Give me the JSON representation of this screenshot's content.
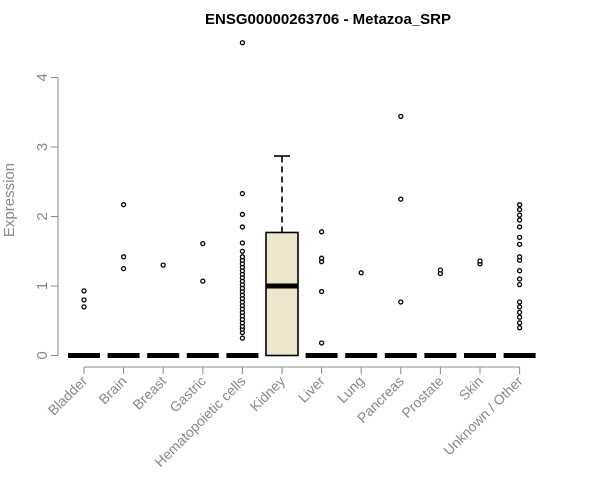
{
  "chart_data": {
    "type": "box",
    "title": "ENSG00000263706 - Metazoa_SRP",
    "ylabel": "Expression",
    "xlabel": "",
    "ylim": [
      0,
      4.6
    ],
    "yticks": [
      0,
      1,
      2,
      3,
      4
    ],
    "grid": false,
    "legend": "none",
    "categories": [
      "Bladder",
      "Brain",
      "Breast",
      "Gastric",
      "Hematopoietic cells",
      "Kidney",
      "Liver",
      "Lung",
      "Pancreas",
      "Prostate",
      "Skin",
      "Unknown / Other"
    ],
    "boxes": [
      {
        "q1": 0,
        "median": 0,
        "q3": 0,
        "whisker_low": 0,
        "whisker_high": 0,
        "outliers": [
          0.7,
          0.8,
          0.93
        ]
      },
      {
        "q1": 0,
        "median": 0,
        "q3": 0,
        "whisker_low": 0,
        "whisker_high": 0,
        "outliers": [
          1.25,
          1.42,
          2.17
        ]
      },
      {
        "q1": 0,
        "median": 0,
        "q3": 0,
        "whisker_low": 0,
        "whisker_high": 0,
        "outliers": [
          1.3
        ]
      },
      {
        "q1": 0,
        "median": 0,
        "q3": 0,
        "whisker_low": 0,
        "whisker_high": 0,
        "outliers": [
          1.07,
          1.61
        ]
      },
      {
        "q1": 0,
        "median": 0,
        "q3": 0,
        "whisker_low": 0,
        "whisker_high": 0,
        "outliers": [
          0.25,
          0.33,
          0.38,
          0.42,
          0.47,
          0.52,
          0.57,
          0.62,
          0.67,
          0.72,
          0.77,
          0.82,
          0.87,
          0.92,
          0.97,
          1.02,
          1.07,
          1.12,
          1.17,
          1.22,
          1.27,
          1.32,
          1.37,
          1.42,
          1.5,
          1.62,
          1.85,
          2.03,
          2.33,
          4.5
        ]
      },
      {
        "q1": 0,
        "median": 1.0,
        "q3": 1.77,
        "whisker_low": 0,
        "whisker_high": 2.87,
        "outliers": []
      },
      {
        "q1": 0,
        "median": 0,
        "q3": 0,
        "whisker_low": 0,
        "whisker_high": 0,
        "outliers": [
          0.18,
          0.92,
          1.35,
          1.4,
          1.78
        ]
      },
      {
        "q1": 0,
        "median": 0,
        "q3": 0,
        "whisker_low": 0,
        "whisker_high": 0,
        "outliers": [
          1.19
        ]
      },
      {
        "q1": 0,
        "median": 0,
        "q3": 0,
        "whisker_low": 0,
        "whisker_high": 0,
        "outliers": [
          0.77,
          2.25,
          3.44
        ]
      },
      {
        "q1": 0,
        "median": 0,
        "q3": 0,
        "whisker_low": 0,
        "whisker_high": 0,
        "outliers": [
          1.18,
          1.23
        ]
      },
      {
        "q1": 0,
        "median": 0,
        "q3": 0,
        "whisker_low": 0,
        "whisker_high": 0,
        "outliers": [
          1.32,
          1.36
        ]
      },
      {
        "q1": 0,
        "median": 0,
        "q3": 0,
        "whisker_low": 0,
        "whisker_high": 0,
        "outliers": [
          0.4,
          0.47,
          0.55,
          0.62,
          0.7,
          0.77,
          1.02,
          1.1,
          1.22,
          1.37,
          1.42,
          1.6,
          1.7,
          1.85,
          1.95,
          2.02,
          2.1,
          2.17
        ]
      }
    ],
    "colors": {
      "box_fill": "#ede6cc",
      "stroke": "#000000",
      "axis": "#888888"
    }
  }
}
